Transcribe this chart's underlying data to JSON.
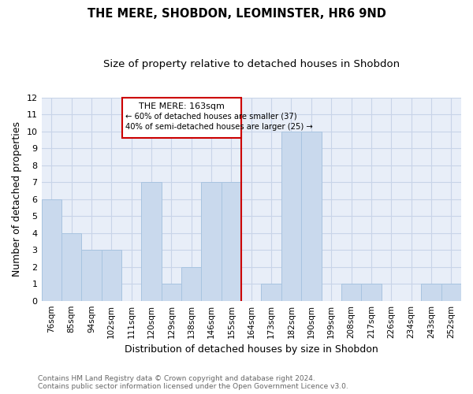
{
  "title": "THE MERE, SHOBDON, LEOMINSTER, HR6 9ND",
  "subtitle": "Size of property relative to detached houses in Shobdon",
  "xlabel": "Distribution of detached houses by size in Shobdon",
  "ylabel": "Number of detached properties",
  "categories": [
    "76sqm",
    "85sqm",
    "94sqm",
    "102sqm",
    "111sqm",
    "120sqm",
    "129sqm",
    "138sqm",
    "146sqm",
    "155sqm",
    "164sqm",
    "173sqm",
    "182sqm",
    "190sqm",
    "199sqm",
    "208sqm",
    "217sqm",
    "226sqm",
    "234sqm",
    "243sqm",
    "252sqm"
  ],
  "values": [
    6,
    4,
    3,
    3,
    0,
    7,
    1,
    2,
    7,
    7,
    0,
    1,
    10,
    10,
    0,
    1,
    1,
    0,
    0,
    1,
    1
  ],
  "bar_color": "#c9d9ed",
  "bar_edge_color": "#a8c4e0",
  "marker_label": "THE MERE: 163sqm",
  "annotation_line1": "← 60% of detached houses are smaller (37)",
  "annotation_line2": "40% of semi-detached houses are larger (25) →",
  "ylim": [
    0,
    12
  ],
  "yticks": [
    0,
    1,
    2,
    3,
    4,
    5,
    6,
    7,
    8,
    9,
    10,
    11,
    12
  ],
  "grid_color": "#c8d4e8",
  "background_color": "#e8eef8",
  "footer_line1": "Contains HM Land Registry data © Crown copyright and database right 2024.",
  "footer_line2": "Contains public sector information licensed under the Open Government Licence v3.0.",
  "annotation_box_color": "#cc0000",
  "title_fontsize": 10.5,
  "subtitle_fontsize": 9.5,
  "tick_fontsize": 7.5,
  "ylabel_fontsize": 9,
  "xlabel_fontsize": 9,
  "footer_fontsize": 6.5
}
